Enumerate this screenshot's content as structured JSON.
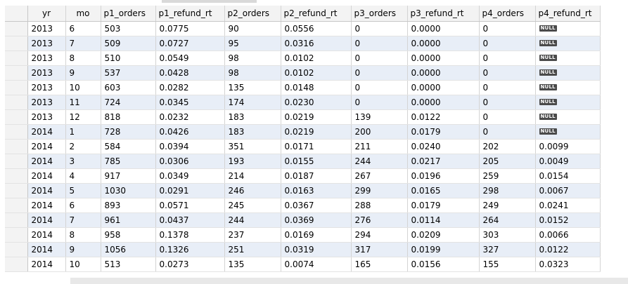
{
  "results": {
    "columns": [
      "yr",
      "mo",
      "p1_orders",
      "p1_refund_rt",
      "p2_orders",
      "p2_refund_rt",
      "p3_orders",
      "p3_refund_rt",
      "p4_orders",
      "p4_refund_rt"
    ],
    "null_label": "NULL",
    "rows": [
      [
        "2013",
        "6",
        "503",
        "0.0775",
        "90",
        "0.0556",
        "0",
        "0.0000",
        "0",
        null
      ],
      [
        "2013",
        "7",
        "509",
        "0.0727",
        "95",
        "0.0316",
        "0",
        "0.0000",
        "0",
        null
      ],
      [
        "2013",
        "8",
        "510",
        "0.0549",
        "98",
        "0.0102",
        "0",
        "0.0000",
        "0",
        null
      ],
      [
        "2013",
        "9",
        "537",
        "0.0428",
        "98",
        "0.0102",
        "0",
        "0.0000",
        "0",
        null
      ],
      [
        "2013",
        "10",
        "603",
        "0.0282",
        "135",
        "0.0148",
        "0",
        "0.0000",
        "0",
        null
      ],
      [
        "2013",
        "11",
        "724",
        "0.0345",
        "174",
        "0.0230",
        "0",
        "0.0000",
        "0",
        null
      ],
      [
        "2013",
        "12",
        "818",
        "0.0232",
        "183",
        "0.0219",
        "139",
        "0.0122",
        "0",
        null
      ],
      [
        "2014",
        "1",
        "728",
        "0.0426",
        "183",
        "0.0219",
        "200",
        "0.0179",
        "0",
        null
      ],
      [
        "2014",
        "2",
        "584",
        "0.0394",
        "351",
        "0.0171",
        "211",
        "0.0240",
        "202",
        "0.0099"
      ],
      [
        "2014",
        "3",
        "785",
        "0.0306",
        "193",
        "0.0155",
        "244",
        "0.0217",
        "205",
        "0.0049"
      ],
      [
        "2014",
        "4",
        "917",
        "0.0349",
        "214",
        "0.0187",
        "267",
        "0.0196",
        "259",
        "0.0154"
      ],
      [
        "2014",
        "5",
        "1030",
        "0.0291",
        "246",
        "0.0163",
        "299",
        "0.0165",
        "298",
        "0.0067"
      ],
      [
        "2014",
        "6",
        "893",
        "0.0571",
        "245",
        "0.0367",
        "288",
        "0.0179",
        "249",
        "0.0241"
      ],
      [
        "2014",
        "7",
        "961",
        "0.0437",
        "244",
        "0.0369",
        "276",
        "0.0114",
        "264",
        "0.0152"
      ],
      [
        "2014",
        "8",
        "958",
        "0.1378",
        "237",
        "0.0169",
        "294",
        "0.0209",
        "303",
        "0.0066"
      ],
      [
        "2014",
        "9",
        "1056",
        "0.1326",
        "251",
        "0.0319",
        "317",
        "0.0199",
        "327",
        "0.0122"
      ],
      [
        "2014",
        "10",
        "513",
        "0.0273",
        "135",
        "0.0074",
        "165",
        "0.0156",
        "155",
        "0.0323"
      ]
    ]
  },
  "colors": {
    "row_alt": "#e8eef7",
    "header_bg": "#f3f3f3",
    "null_badge_bg": "#4a4a4a"
  }
}
